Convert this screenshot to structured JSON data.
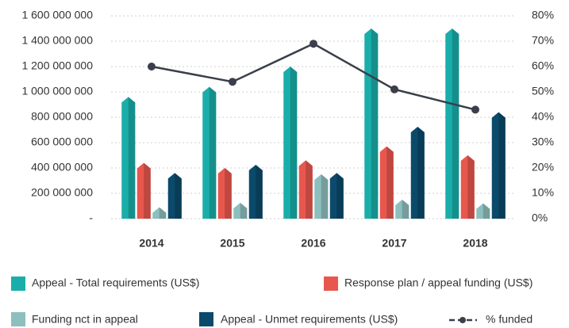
{
  "chart_data": {
    "type": "bar",
    "categories": [
      "2014",
      "2015",
      "2016",
      "2017",
      "2018"
    ],
    "series": [
      {
        "name": "Appeal - Total requirements (US$)",
        "color": "#1aaeaa",
        "values": [
          960000000,
          1040000000,
          1200000000,
          1500000000,
          1500000000
        ]
      },
      {
        "name": "Response plan / appeal funding (US$)",
        "color": "#e8574e",
        "values": [
          440000000,
          400000000,
          460000000,
          570000000,
          500000000
        ]
      },
      {
        "name": "Funding nct in appeal",
        "color": "#8dbfbe",
        "values": [
          90000000,
          125000000,
          350000000,
          150000000,
          120000000
        ]
      },
      {
        "name": "Appeal - Unmet requirements (US$)",
        "color": "#0b4a6a",
        "values": [
          360000000,
          425000000,
          360000000,
          725000000,
          840000000
        ]
      },
      {
        "name": "% funded",
        "color": "#3a3f4a",
        "type": "line",
        "axis": "y2",
        "values": [
          60,
          54,
          69,
          51,
          43
        ]
      }
    ],
    "ylim": [
      0,
      1600000000
    ],
    "yticks": [
      {
        "value": 0,
        "label": "-"
      },
      {
        "value": 200000000,
        "label": "200 000 000"
      },
      {
        "value": 400000000,
        "label": "400 000 000"
      },
      {
        "value": 600000000,
        "label": "600 000 000"
      },
      {
        "value": 800000000,
        "label": "800 000 000"
      },
      {
        "value": 1000000000,
        "label": "1 000 000 000"
      },
      {
        "value": 1200000000,
        "label": "1 200 000 000"
      },
      {
        "value": 1400000000,
        "label": "1 400 000 000"
      },
      {
        "value": 1600000000,
        "label": "1 600 000 000"
      }
    ],
    "y2lim": [
      0,
      80
    ],
    "y2ticks": [
      {
        "value": 0,
        "label": "0%"
      },
      {
        "value": 10,
        "label": "10%"
      },
      {
        "value": 20,
        "label": "20%"
      },
      {
        "value": 30,
        "label": "30%"
      },
      {
        "value": 40,
        "label": "40%"
      },
      {
        "value": 50,
        "label": "50%"
      },
      {
        "value": 60,
        "label": "60%"
      },
      {
        "value": 70,
        "label": "70%"
      },
      {
        "value": 80,
        "label": "80%"
      }
    ],
    "grid": true
  }
}
